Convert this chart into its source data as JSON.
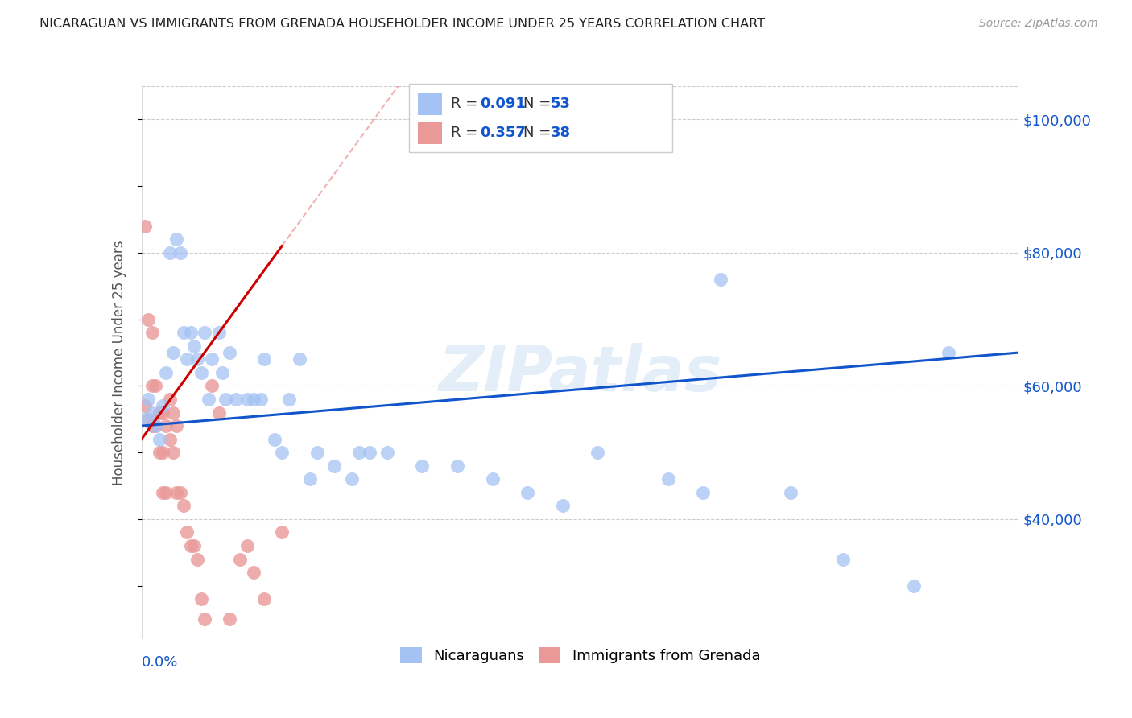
{
  "title": "NICARAGUAN VS IMMIGRANTS FROM GRENADA HOUSEHOLDER INCOME UNDER 25 YEARS CORRELATION CHART",
  "source": "Source: ZipAtlas.com",
  "ylabel": "Householder Income Under 25 years",
  "xmin": 0.0,
  "xmax": 0.25,
  "ymin": 22000,
  "ymax": 105000,
  "yticks": [
    40000,
    60000,
    80000,
    100000
  ],
  "ytick_labels": [
    "$40,000",
    "$60,000",
    "$80,000",
    "$100,000"
  ],
  "color_blue": "#a4c2f4",
  "color_pink": "#ea9999",
  "color_blue_line": "#1155cc",
  "color_pink_line": "#cc0000",
  "color_pink_dashed": "#e06666",
  "watermark": "ZIPatlas",
  "nic_x": [
    0.001,
    0.002,
    0.003,
    0.004,
    0.005,
    0.006,
    0.007,
    0.008,
    0.009,
    0.01,
    0.011,
    0.012,
    0.013,
    0.014,
    0.015,
    0.016,
    0.017,
    0.018,
    0.019,
    0.02,
    0.022,
    0.023,
    0.024,
    0.025,
    0.027,
    0.03,
    0.032,
    0.034,
    0.035,
    0.038,
    0.04,
    0.042,
    0.045,
    0.048,
    0.05,
    0.055,
    0.06,
    0.062,
    0.065,
    0.07,
    0.08,
    0.09,
    0.1,
    0.11,
    0.12,
    0.13,
    0.15,
    0.16,
    0.165,
    0.185,
    0.2,
    0.22,
    0.23
  ],
  "nic_y": [
    55000,
    58000,
    56000,
    54000,
    52000,
    57000,
    62000,
    80000,
    65000,
    82000,
    80000,
    68000,
    64000,
    68000,
    66000,
    64000,
    62000,
    68000,
    58000,
    64000,
    68000,
    62000,
    58000,
    65000,
    58000,
    58000,
    58000,
    58000,
    64000,
    52000,
    50000,
    58000,
    64000,
    46000,
    50000,
    48000,
    46000,
    50000,
    50000,
    50000,
    48000,
    48000,
    46000,
    44000,
    42000,
    50000,
    46000,
    44000,
    76000,
    44000,
    34000,
    30000,
    65000
  ],
  "gren_x": [
    0.001,
    0.001,
    0.002,
    0.002,
    0.003,
    0.003,
    0.003,
    0.004,
    0.004,
    0.005,
    0.005,
    0.006,
    0.006,
    0.006,
    0.007,
    0.007,
    0.008,
    0.008,
    0.009,
    0.009,
    0.01,
    0.01,
    0.011,
    0.012,
    0.013,
    0.014,
    0.015,
    0.016,
    0.017,
    0.018,
    0.02,
    0.022,
    0.025,
    0.028,
    0.03,
    0.032,
    0.035,
    0.04
  ],
  "gren_y": [
    57000,
    84000,
    55000,
    70000,
    60000,
    54000,
    68000,
    60000,
    54000,
    56000,
    50000,
    56000,
    50000,
    44000,
    54000,
    44000,
    58000,
    52000,
    56000,
    50000,
    54000,
    44000,
    44000,
    42000,
    38000,
    36000,
    36000,
    34000,
    28000,
    25000,
    60000,
    56000,
    25000,
    34000,
    36000,
    32000,
    28000,
    38000
  ]
}
